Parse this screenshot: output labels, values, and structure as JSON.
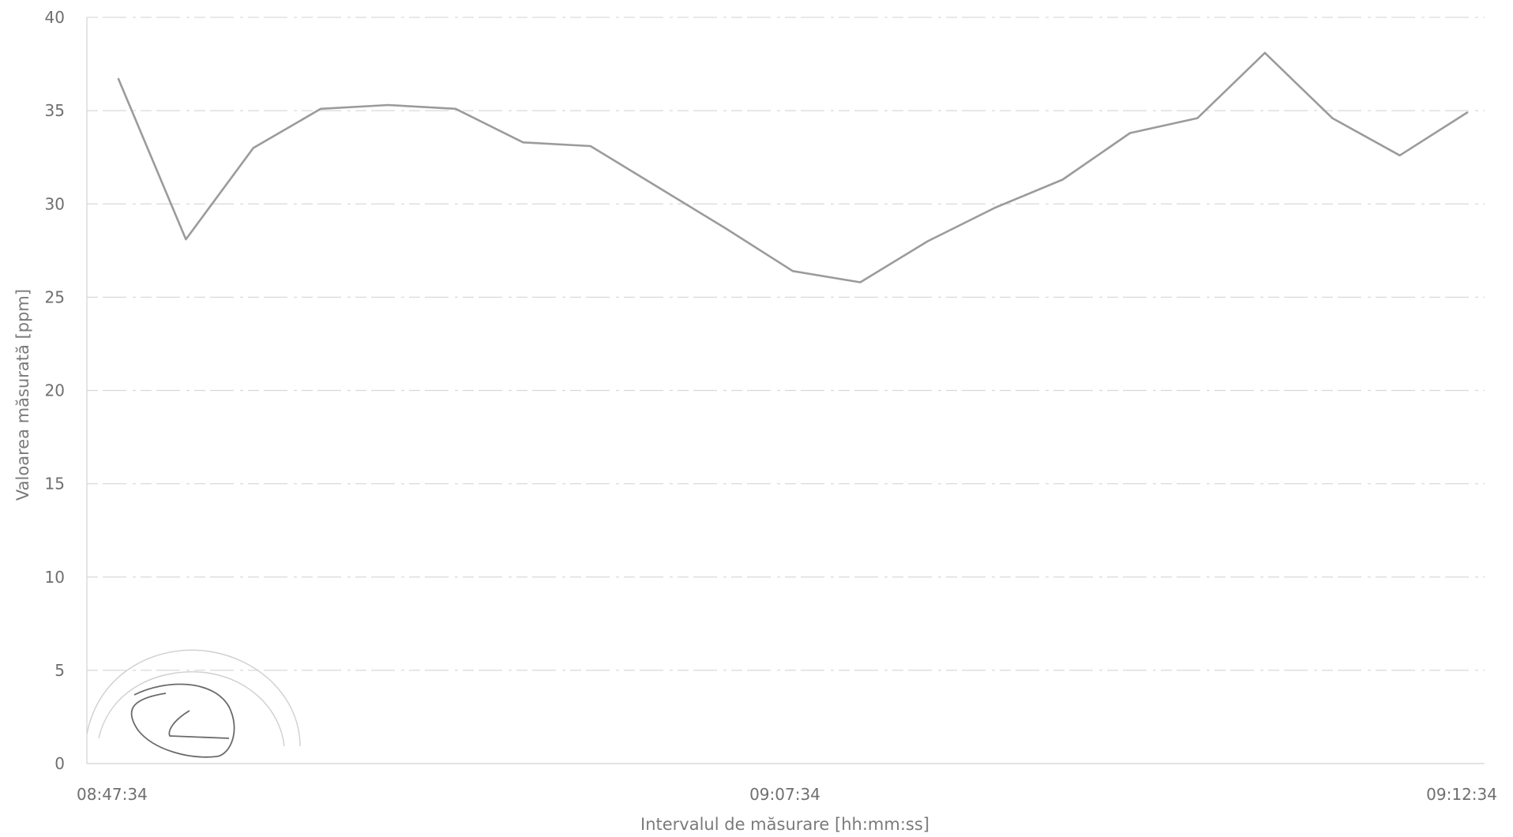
{
  "chart_data": {
    "type": "line",
    "title": "",
    "xlabel": "Intervalul de măsurare [hh:mm:ss]",
    "ylabel": "Valoarea măsurată [ppm]",
    "ylim": [
      0,
      40
    ],
    "y_ticks": [
      "0",
      "5",
      "10",
      "15",
      "20",
      "25",
      "30",
      "35",
      "40"
    ],
    "x_tick_labels": [
      "08:47:34",
      "09:07:34",
      "09:12:34"
    ],
    "grid": true,
    "legend": "none",
    "line_color": "#9b9b9b",
    "series": [
      {
        "values": [
          36.7,
          28.1,
          33.0,
          35.1,
          35.3,
          35.1,
          33.3,
          33.1,
          30.9,
          28.7,
          26.4,
          25.8,
          28.0,
          29.8,
          31.3,
          33.8,
          34.6,
          38.1,
          34.6,
          32.6,
          34.9
        ]
      }
    ]
  }
}
